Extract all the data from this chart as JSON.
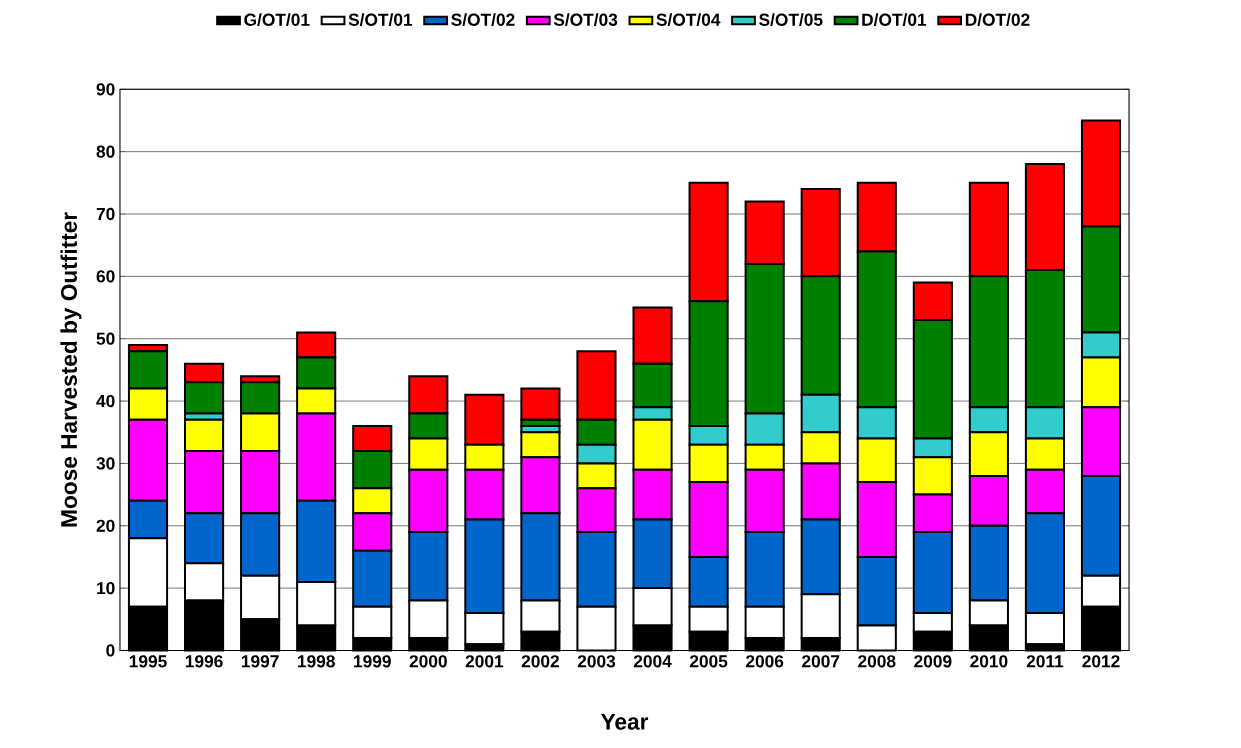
{
  "chart_data": {
    "type": "bar",
    "stacked": true,
    "xlabel": "Year",
    "ylabel": "Moose Harvested by Outfitter",
    "categories": [
      "1995",
      "1996",
      "1997",
      "1998",
      "1999",
      "2000",
      "2001",
      "2002",
      "2003",
      "2004",
      "2005",
      "2006",
      "2007",
      "2008",
      "2009",
      "2010",
      "2011",
      "2012"
    ],
    "series": [
      {
        "name": "G/OT/01",
        "color": "#000000",
        "values": [
          7,
          8,
          5,
          4,
          2,
          2,
          1,
          3,
          0,
          4,
          3,
          2,
          2,
          0,
          3,
          4,
          1,
          7
        ]
      },
      {
        "name": "S/OT/01",
        "color": "#ffffff",
        "values": [
          11,
          6,
          7,
          7,
          5,
          6,
          5,
          5,
          7,
          6,
          4,
          5,
          7,
          4,
          3,
          4,
          5,
          5
        ]
      },
      {
        "name": "S/OT/02",
        "color": "#0066cc",
        "values": [
          6,
          8,
          10,
          13,
          9,
          11,
          15,
          14,
          12,
          11,
          8,
          12,
          12,
          11,
          13,
          12,
          16,
          16
        ]
      },
      {
        "name": "S/OT/03",
        "color": "#ff00ff",
        "values": [
          13,
          10,
          10,
          14,
          6,
          10,
          8,
          9,
          7,
          8,
          12,
          10,
          9,
          12,
          6,
          8,
          7,
          11
        ]
      },
      {
        "name": "S/OT/04",
        "color": "#ffff00",
        "values": [
          5,
          5,
          6,
          4,
          4,
          5,
          4,
          4,
          4,
          8,
          6,
          4,
          5,
          7,
          6,
          7,
          5,
          8
        ]
      },
      {
        "name": "S/OT/05",
        "color": "#33cccc",
        "values": [
          0,
          1,
          0,
          0,
          0,
          0,
          0,
          1,
          3,
          2,
          3,
          5,
          6,
          5,
          3,
          4,
          5,
          4
        ]
      },
      {
        "name": "D/OT/01",
        "color": "#008000",
        "values": [
          6,
          5,
          5,
          5,
          6,
          4,
          0,
          1,
          4,
          7,
          20,
          24,
          19,
          25,
          19,
          21,
          22,
          17
        ]
      },
      {
        "name": "D/OT/02",
        "color": "#ff0000",
        "values": [
          1,
          3,
          1,
          4,
          4,
          6,
          8,
          5,
          11,
          9,
          19,
          10,
          14,
          11,
          6,
          15,
          17,
          17
        ]
      }
    ],
    "ylim": [
      0,
      90
    ],
    "yticks": [
      0,
      10,
      20,
      30,
      40,
      50,
      60,
      70,
      80,
      90
    ],
    "grid": "y",
    "legend": "top"
  }
}
